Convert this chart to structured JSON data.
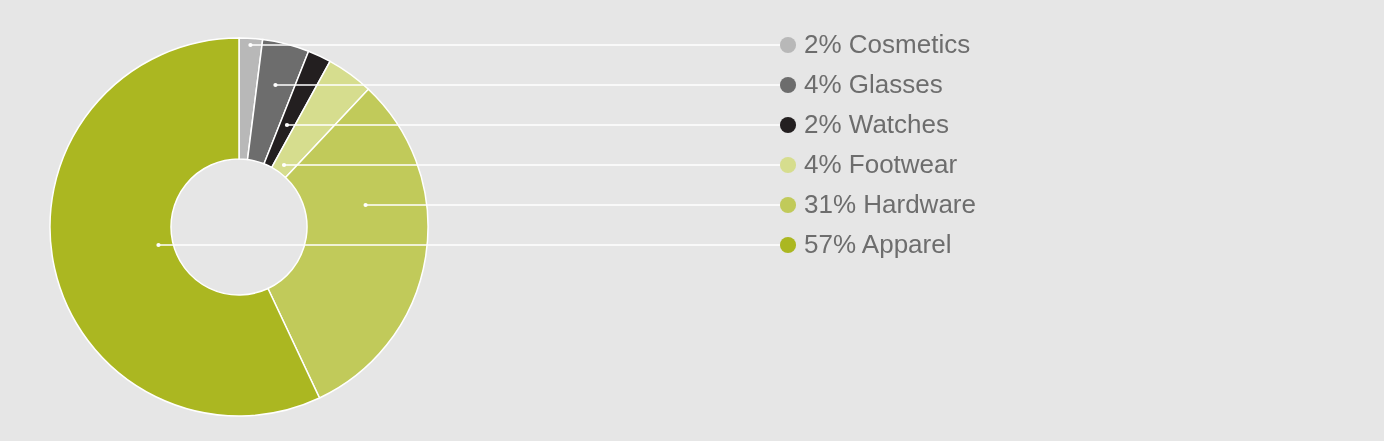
{
  "chart_data": {
    "type": "donut",
    "categories": [
      "Cosmetics",
      "Glasses",
      "Watches",
      "Footwear",
      "Hardware",
      "Apparel"
    ],
    "values": [
      2,
      4,
      2,
      4,
      31,
      57
    ],
    "value_labels": [
      "2%",
      "4%",
      "2%",
      "4%",
      "31%",
      "57%"
    ],
    "colors": [
      "#b8b8b8",
      "#6d6d6d",
      "#231f20",
      "#d6dd8e",
      "#c1ca5a",
      "#abb721"
    ],
    "legend": "right"
  }
}
